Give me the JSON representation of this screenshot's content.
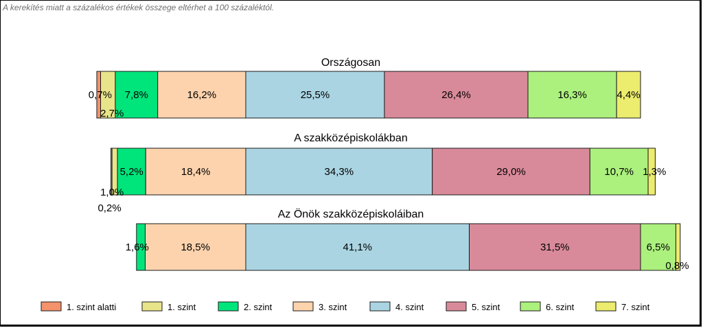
{
  "note": "A kerekítés miatt a  százalékos értékek összege eltérhet a 100 százaléktól.",
  "colors": {
    "seg": [
      "#f4926b",
      "#e8e48a",
      "#00e47c",
      "#fcd3ad",
      "#aad4e2",
      "#d98a9a",
      "#acf07e",
      "#ecec6e"
    ]
  },
  "chart_data": {
    "type": "bar",
    "orientation": "horizontal-stacked-100",
    "title": "",
    "series": [
      {
        "name": "1. szint alatti"
      },
      {
        "name": "1. szint"
      },
      {
        "name": "2. szint"
      },
      {
        "name": "3. szint"
      },
      {
        "name": "4. szint"
      },
      {
        "name": "5. szint"
      },
      {
        "name": "6. szint"
      },
      {
        "name": "7. szint"
      }
    ],
    "groups": [
      {
        "title": "Országosan",
        "values": [
          0.7,
          2.7,
          7.8,
          16.2,
          25.5,
          26.4,
          16.3,
          4.4
        ],
        "labels": [
          "0,7%",
          "2,7%",
          "7,8%",
          "16,2%",
          "25,5%",
          "26,4%",
          "16,3%",
          "4,4%"
        ]
      },
      {
        "title": "A szakközépiskolákban",
        "values": [
          0.2,
          1.0,
          5.2,
          18.4,
          34.3,
          29.0,
          10.7,
          1.3
        ],
        "labels": [
          "0,2%",
          "1,0%",
          "5,2%",
          "18,4%",
          "34,3%",
          "29,0%",
          "10,7%",
          "1,3%"
        ]
      },
      {
        "title": "Az Önök szakközépiskoláiban",
        "values": [
          0.0,
          0.0,
          1.6,
          18.5,
          41.1,
          31.5,
          6.5,
          0.8
        ],
        "labels": [
          "",
          "",
          "1,6%",
          "18,5%",
          "41,1%",
          "31,5%",
          "6,5%",
          "0,8%"
        ]
      }
    ],
    "legend_position": "bottom"
  }
}
